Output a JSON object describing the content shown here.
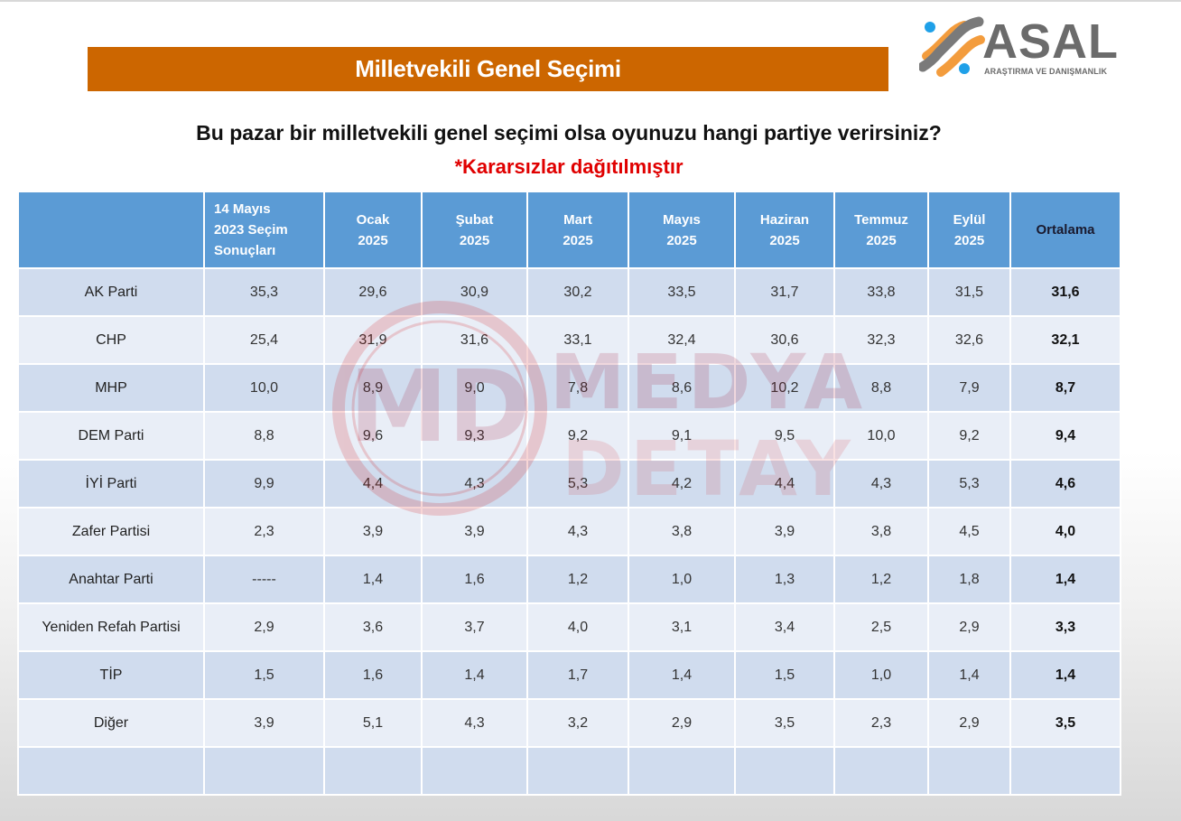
{
  "header": {
    "title": "Milletvekili Genel Seçimi",
    "logo_brand": "ASAL",
    "logo_tagline": "ARAŞTIRMA VE DANIŞMANLIK"
  },
  "question": "Bu pazar bir milletvekili genel seçimi olsa oyunuzu hangi partiye verirsiniz?",
  "note": "*Kararsızlar dağıtılmıştır",
  "watermark": {
    "monogram": "MD",
    "line1": "MEDYA",
    "line2": "DETAY"
  },
  "colors": {
    "title_bar": "#cc6600",
    "header_bg": "#5b9bd5",
    "row_odd": "#d0dcee",
    "row_even": "#e9eef7",
    "note_red": "#e00000",
    "logo_orange": "#f39c3d",
    "logo_blue": "#1fa0e8",
    "logo_gray": "#6b6b6b"
  },
  "table": {
    "headers": [
      {
        "line1": "",
        "line2": "",
        "line3": ""
      },
      {
        "line1": "14 Mayıs",
        "line2": "2023 Seçim",
        "line3": "Sonuçları"
      },
      {
        "line1": "Ocak",
        "line2": "2025"
      },
      {
        "line1": "Şubat",
        "line2": "2025"
      },
      {
        "line1": "Mart",
        "line2": "2025"
      },
      {
        "line1": "Mayıs",
        "line2": "2025"
      },
      {
        "line1": "Haziran",
        "line2": "2025"
      },
      {
        "line1": "Temmuz",
        "line2": "2025"
      },
      {
        "line1": "Eylül",
        "line2": "2025"
      },
      {
        "line1": "Ortalama"
      }
    ],
    "rows": [
      {
        "party": "AK Parti",
        "values": [
          "35,3",
          "29,6",
          "30,9",
          "30,2",
          "33,5",
          "31,7",
          "33,8",
          "31,5"
        ],
        "avg": "31,6"
      },
      {
        "party": "CHP",
        "values": [
          "25,4",
          "31,9",
          "31,6",
          "33,1",
          "32,4",
          "30,6",
          "32,3",
          "32,6"
        ],
        "avg": "32,1"
      },
      {
        "party": "MHP",
        "values": [
          "10,0",
          "8,9",
          "9,0",
          "7,8",
          "8,6",
          "10,2",
          "8,8",
          "7,9"
        ],
        "avg": "8,7"
      },
      {
        "party": "DEM Parti",
        "values": [
          "8,8",
          "9,6",
          "9,3",
          "9,2",
          "9,1",
          "9,5",
          "10,0",
          "9,2"
        ],
        "avg": "9,4"
      },
      {
        "party": "İYİ Parti",
        "values": [
          "9,9",
          "4,4",
          "4,3",
          "5,3",
          "4,2",
          "4,4",
          "4,3",
          "5,3"
        ],
        "avg": "4,6"
      },
      {
        "party": "Zafer Partisi",
        "values": [
          "2,3",
          "3,9",
          "3,9",
          "4,3",
          "3,8",
          "3,9",
          "3,8",
          "4,5"
        ],
        "avg": "4,0"
      },
      {
        "party": "Anahtar Parti",
        "values": [
          "-----",
          "1,4",
          "1,6",
          "1,2",
          "1,0",
          "1,3",
          "1,2",
          "1,8"
        ],
        "avg": "1,4"
      },
      {
        "party": "Yeniden Refah Partisi",
        "values": [
          "2,9",
          "3,6",
          "3,7",
          "4,0",
          "3,1",
          "3,4",
          "2,5",
          "2,9"
        ],
        "avg": "3,3"
      },
      {
        "party": "TİP",
        "values": [
          "1,5",
          "1,6",
          "1,4",
          "1,7",
          "1,4",
          "1,5",
          "1,0",
          "1,4"
        ],
        "avg": "1,4"
      },
      {
        "party": "Diğer",
        "values": [
          "3,9",
          "5,1",
          "4,3",
          "3,2",
          "2,9",
          "3,5",
          "2,3",
          "2,9"
        ],
        "avg": "3,5"
      },
      {
        "party": "",
        "values": [
          "",
          "",
          "",
          "",
          "",
          "",
          "",
          ""
        ],
        "avg": ""
      }
    ]
  }
}
